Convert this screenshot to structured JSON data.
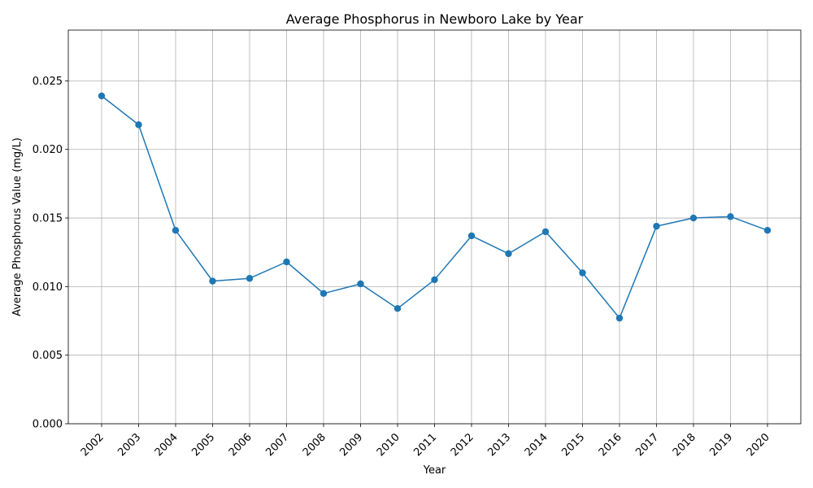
{
  "chart_data": {
    "type": "line",
    "title": "Average Phosphorus in Newboro Lake by Year",
    "xlabel": "Year",
    "ylabel": "Average Phosphorus Value (mg/L)",
    "categories": [
      "2002",
      "2003",
      "2004",
      "2005",
      "2006",
      "2007",
      "2008",
      "2009",
      "2010",
      "2011",
      "2012",
      "2013",
      "2014",
      "2015",
      "2016",
      "2017",
      "2018",
      "2019",
      "2020"
    ],
    "series": [
      {
        "values": [
          0.0239,
          0.0218,
          0.0141,
          0.0104,
          0.0106,
          0.0118,
          0.0095,
          0.0102,
          0.0084,
          0.0105,
          0.0137,
          0.0124,
          0.014,
          0.011,
          0.0077,
          0.0144,
          0.015,
          0.0151,
          0.0141
        ],
        "color": "#1f77b4",
        "marker": "circle"
      }
    ],
    "ylim": [
      0,
      0.0287
    ],
    "yticks": [
      "0.000",
      "0.005",
      "0.010",
      "0.015",
      "0.020",
      "0.025"
    ],
    "grid": true,
    "x_tick_rotation": "45"
  }
}
